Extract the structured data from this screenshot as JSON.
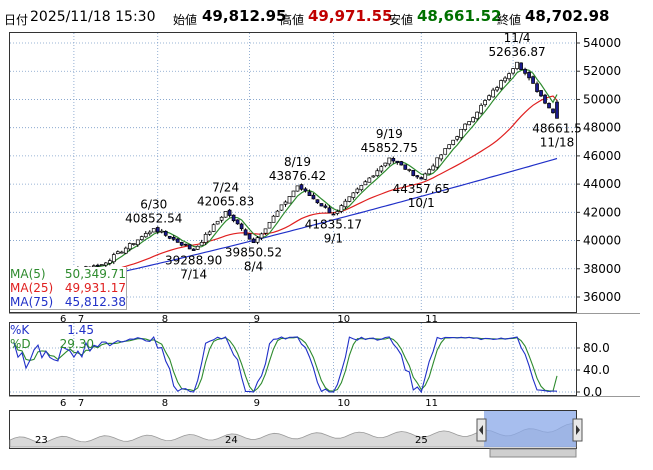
{
  "header": {
    "date_label": "日付",
    "datetime": "2025/11/18 15:30",
    "open_label": "始値",
    "open_value": "49,812.95",
    "high_label": "高値",
    "high_value": "49,971.55",
    "low_label": "安値",
    "low_value": "48,661.52",
    "close_label": "終値",
    "close_value": "48,702.98"
  },
  "colors": {
    "up_candle": "#ffffff",
    "down_candle": "#1a1a8c",
    "ma5": "#2e8b2e",
    "ma25": "#e02020",
    "ma75": "#2030c8",
    "stoch_k": "#2030c8",
    "stoch_d": "#2e8b2e",
    "grid": "#7a9cc8",
    "high_value": "#c00000",
    "low_value": "#007000"
  },
  "legend": [
    {
      "label": "MA(5)",
      "value": "50,349.71",
      "color": "#2e8b2e"
    },
    {
      "label": "MA(25)",
      "value": "49,931.17",
      "color": "#e02020"
    },
    {
      "label": "MA(75)",
      "value": "45,812.38",
      "color": "#2030c8"
    }
  ],
  "stoch_legend": [
    {
      "label": "%K",
      "value": "1.45",
      "color": "#2030c8"
    },
    {
      "label": "%D",
      "value": "29.30",
      "color": "#2e8b2e"
    }
  ],
  "chart_data": [
    {
      "type": "candlestick",
      "ylim": [
        35000,
        55000
      ],
      "yticks": [
        36000,
        38000,
        40000,
        42000,
        44000,
        46000,
        48000,
        50000,
        52000,
        54000
      ],
      "ytick_labels": [
        "36000",
        "38000",
        "40000",
        "42000",
        "44000",
        "46000",
        "48000",
        "50000",
        "52000",
        "54000"
      ],
      "xticks": [
        "6",
        "7",
        "8",
        "9",
        "10",
        "11"
      ],
      "grid": true,
      "series_ma5": [],
      "anchors": [
        {
          "date": "6/30",
          "value": 40852.54,
          "kind": "high"
        },
        {
          "date": "7/14",
          "value": 39288.9,
          "kind": "low"
        },
        {
          "date": "7/24",
          "value": 42065.83,
          "kind": "high"
        },
        {
          "date": "8/4",
          "value": 39850.52,
          "kind": "low"
        },
        {
          "date": "8/19",
          "value": 43876.42,
          "kind": "high"
        },
        {
          "date": "9/1",
          "value": 41835.17,
          "kind": "low"
        },
        {
          "date": "9/19",
          "value": 45852.75,
          "kind": "high"
        },
        {
          "date": "10/1",
          "value": 44357.65,
          "kind": "low"
        },
        {
          "date": "11/4",
          "value": 52636.87,
          "kind": "high"
        },
        {
          "date": "11/18",
          "value": 48661.5,
          "kind": "low"
        }
      ],
      "annotations": [
        {
          "date": "6/30",
          "value": "40852.54"
        },
        {
          "date": "7/14",
          "value": "39288.90"
        },
        {
          "date": "7/24",
          "value": "42065.83"
        },
        {
          "date": "8/4",
          "value": "39850.52"
        },
        {
          "date": "8/19",
          "value": "43876.42"
        },
        {
          "date": "9/1",
          "value": "41835.17"
        },
        {
          "date": "9/19",
          "value": "45852.75"
        },
        {
          "date": "10/1",
          "value": "44357.65"
        },
        {
          "date": "11/4",
          "value": "52636.87"
        },
        {
          "date": "11/18",
          "value": "48661.5"
        }
      ],
      "ma75_end": 45812.38,
      "ma25_end": 49931.17,
      "ma5_end": 50349.71
    },
    {
      "type": "line",
      "ylim": [
        0,
        100
      ],
      "yticks": [
        0,
        40,
        80
      ],
      "ytick_labels": [
        "0.0",
        "40.0",
        "80.0"
      ],
      "xticks": [
        "6",
        "7",
        "8",
        "9",
        "10",
        "11"
      ],
      "series": [
        {
          "name": "%K",
          "last": 1.45
        },
        {
          "name": "%D",
          "last": 29.3
        }
      ]
    },
    {
      "type": "area",
      "xticks": [
        "23",
        "24",
        "25"
      ]
    }
  ]
}
